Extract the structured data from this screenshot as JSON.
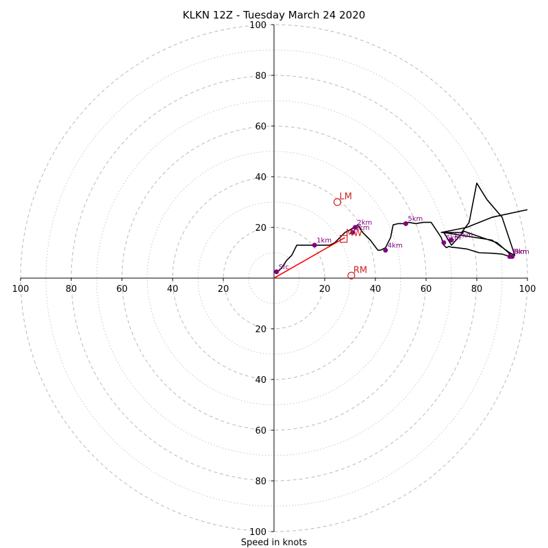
{
  "chart_data": {
    "type": "scatter",
    "subtype": "hodograph",
    "title": "KLKN 12Z - Tuesday March 24 2020",
    "xlabel": "Speed in knots",
    "ylabel": "",
    "xlim": [
      -100,
      100
    ],
    "ylim": [
      -100,
      100
    ],
    "grid": "concentric rings every 10 knots (dashed at 20, dotted between)",
    "axis_tick_labels": {
      "x": [
        "100",
        "80",
        "60",
        "40",
        "20",
        "20",
        "40",
        "60",
        "80",
        "100"
      ],
      "y": [
        "100",
        "80",
        "60",
        "40",
        "20",
        "20",
        "40",
        "60",
        "80",
        "100"
      ]
    },
    "colors": {
      "hodograph": "#000000",
      "height_points": "#800080",
      "shear_vector": "#ff0000",
      "storm_motion": "#cc2222",
      "grid": "#b8b8b8",
      "axes": "#000000"
    },
    "hodograph_trace": {
      "u": [
        1,
        3,
        5,
        7,
        9,
        16,
        20,
        22,
        24,
        26,
        28,
        30,
        33,
        35,
        38,
        41,
        42,
        44,
        46,
        47,
        49,
        51,
        53,
        56,
        59,
        62,
        64,
        66,
        67,
        68,
        69,
        70,
        72,
        76,
        81,
        86,
        90,
        93,
        94,
        92,
        88,
        82,
        75,
        70,
        67,
        86,
        93,
        95,
        90,
        84,
        80,
        77,
        74,
        66,
        76,
        86,
        100
      ],
      "v": [
        2,
        4,
        7,
        9,
        13,
        13,
        13,
        13,
        14,
        16,
        18,
        19,
        21,
        18,
        15,
        11,
        11,
        12,
        16,
        21,
        21.5,
        21.5,
        22,
        21.5,
        22,
        22,
        19,
        16,
        13,
        12,
        12.5,
        12.2,
        12,
        11.5,
        10,
        9.8,
        9.5,
        8.5,
        8.5,
        10.5,
        14,
        16,
        18.5,
        13,
        18,
        15,
        10,
        9,
        24,
        31,
        37.5,
        22,
        18,
        18,
        20,
        24,
        27
      ]
    },
    "height_markers": [
      {
        "label": "Sfc",
        "u": 1,
        "v": 2.5
      },
      {
        "label": "1km",
        "u": 16,
        "v": 13
      },
      {
        "label": "2km",
        "u": 32,
        "v": 20
      },
      {
        "label": "3km",
        "u": 31,
        "v": 18
      },
      {
        "label": "4km",
        "u": 44,
        "v": 11
      },
      {
        "label": "5km",
        "u": 52,
        "v": 21.5
      },
      {
        "label": "6km",
        "u": 67,
        "v": 14
      },
      {
        "label": "12km",
        "u": 70,
        "v": 15
      },
      {
        "label": "7km",
        "u": 93,
        "v": 8.5
      },
      {
        "label": "8km",
        "u": 94,
        "v": 8.5
      }
    ],
    "shear_vector": {
      "u0": 0,
      "v0": 0,
      "u1": 28,
      "v1": 16
    },
    "storm_motion": [
      {
        "label": "LM",
        "u": 25,
        "v": 30,
        "marker": "circle"
      },
      {
        "label": "RM",
        "u": 30.5,
        "v": 1,
        "marker": "circle"
      },
      {
        "label": "MW",
        "u": 27.5,
        "v": 15.5,
        "marker": "square"
      }
    ]
  }
}
